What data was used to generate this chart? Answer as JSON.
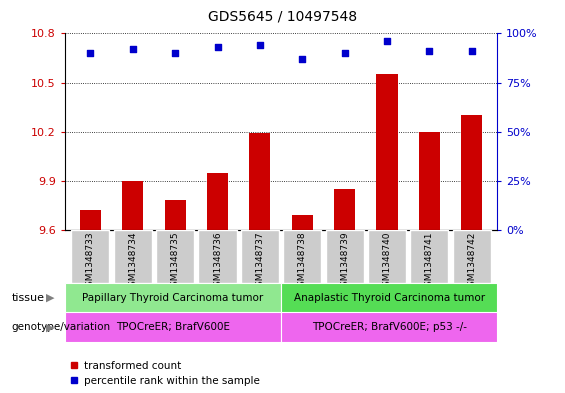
{
  "title": "GDS5645 / 10497548",
  "samples": [
    "GSM1348733",
    "GSM1348734",
    "GSM1348735",
    "GSM1348736",
    "GSM1348737",
    "GSM1348738",
    "GSM1348739",
    "GSM1348740",
    "GSM1348741",
    "GSM1348742"
  ],
  "bar_values": [
    9.72,
    9.9,
    9.78,
    9.95,
    10.19,
    9.69,
    9.85,
    10.55,
    10.2,
    10.3
  ],
  "percentile_values": [
    90,
    92,
    90,
    93,
    94,
    87,
    90,
    96,
    91,
    91
  ],
  "ylim_left": [
    9.6,
    10.8
  ],
  "ylim_right": [
    0,
    100
  ],
  "yticks_left": [
    9.6,
    9.9,
    10.2,
    10.5,
    10.8
  ],
  "yticks_right": [
    0,
    25,
    50,
    75,
    100
  ],
  "bar_color": "#cc0000",
  "dot_color": "#0000cc",
  "tissue_group1_label": "Papillary Thyroid Carcinoma tumor",
  "tissue_group2_label": "Anaplastic Thyroid Carcinoma tumor",
  "tissue_group1_color": "#90e890",
  "tissue_group2_color": "#55dd55",
  "genotype_group1_label": "TPOCreER; BrafV600E",
  "genotype_group2_label": "TPOCreER; BrafV600E; p53 -/-",
  "genotype_color": "#ee66ee",
  "group1_count": 5,
  "group2_count": 5,
  "legend_red_label": "transformed count",
  "legend_blue_label": "percentile rank within the sample",
  "tissue_label": "tissue",
  "genotype_label": "genotype/variation",
  "label_bg_color": "#cccccc",
  "plot_bg_color": "#ffffff",
  "grid_color": "#000000",
  "left_tick_color": "#cc0000",
  "right_tick_color": "#0000cc",
  "bar_width": 0.5
}
